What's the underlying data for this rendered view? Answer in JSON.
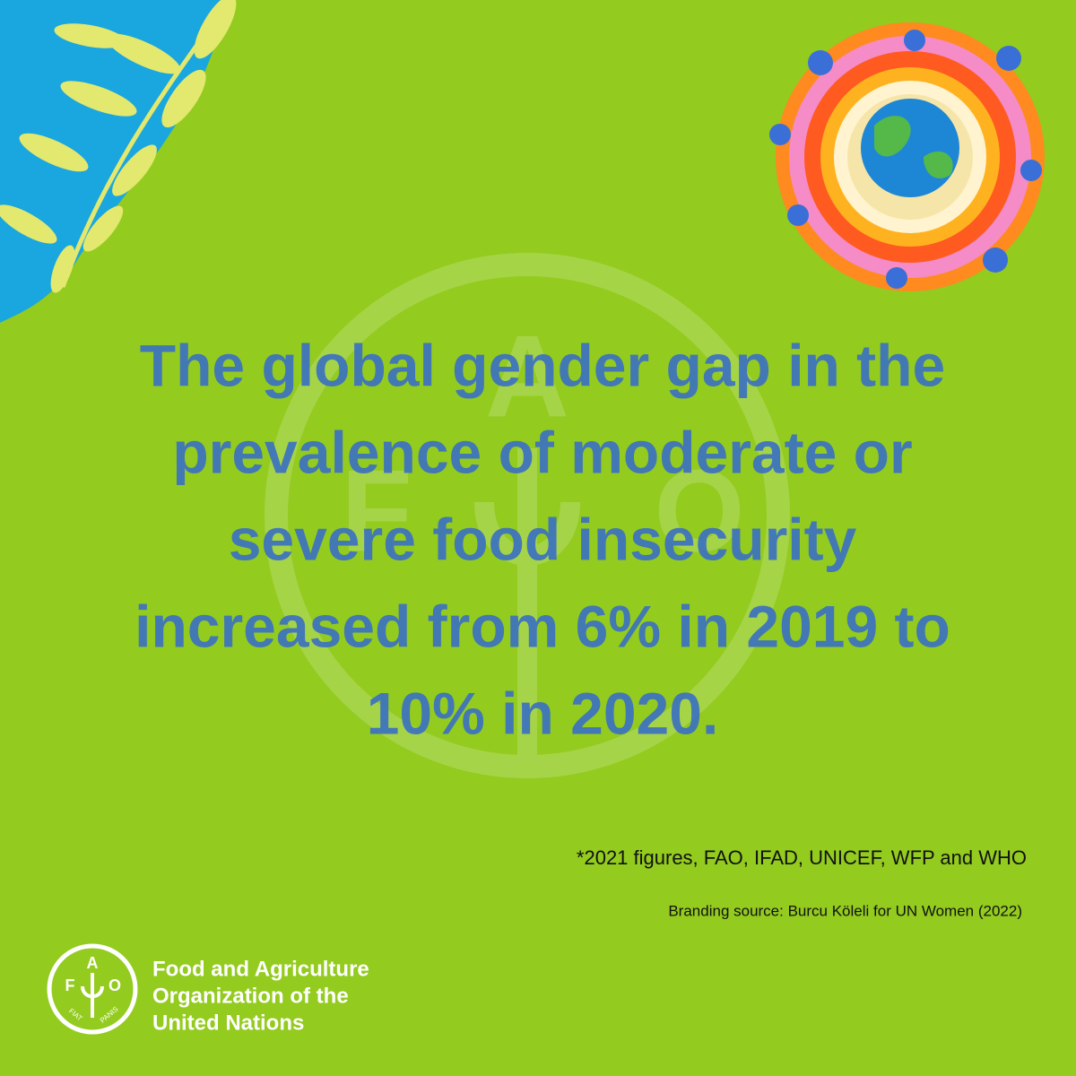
{
  "headline": {
    "lines": [
      "The global gender gap in the",
      "prevalence of moderate or",
      "severe food insecurity",
      "increased from 6% in 2019 to",
      "10% in 2020."
    ]
  },
  "source_note": "*2021 figures, FAO, IFAD, UNICEF, WFP and WHO",
  "branding": "Branding source: Burcu Köleli for UN Women (2022)",
  "logo": {
    "letters": [
      "F",
      "A",
      "O"
    ],
    "motto": [
      "FIAT",
      "PANIS"
    ],
    "organization": [
      "Food and Agriculture",
      "Organization of the",
      "United Nations"
    ]
  }
}
